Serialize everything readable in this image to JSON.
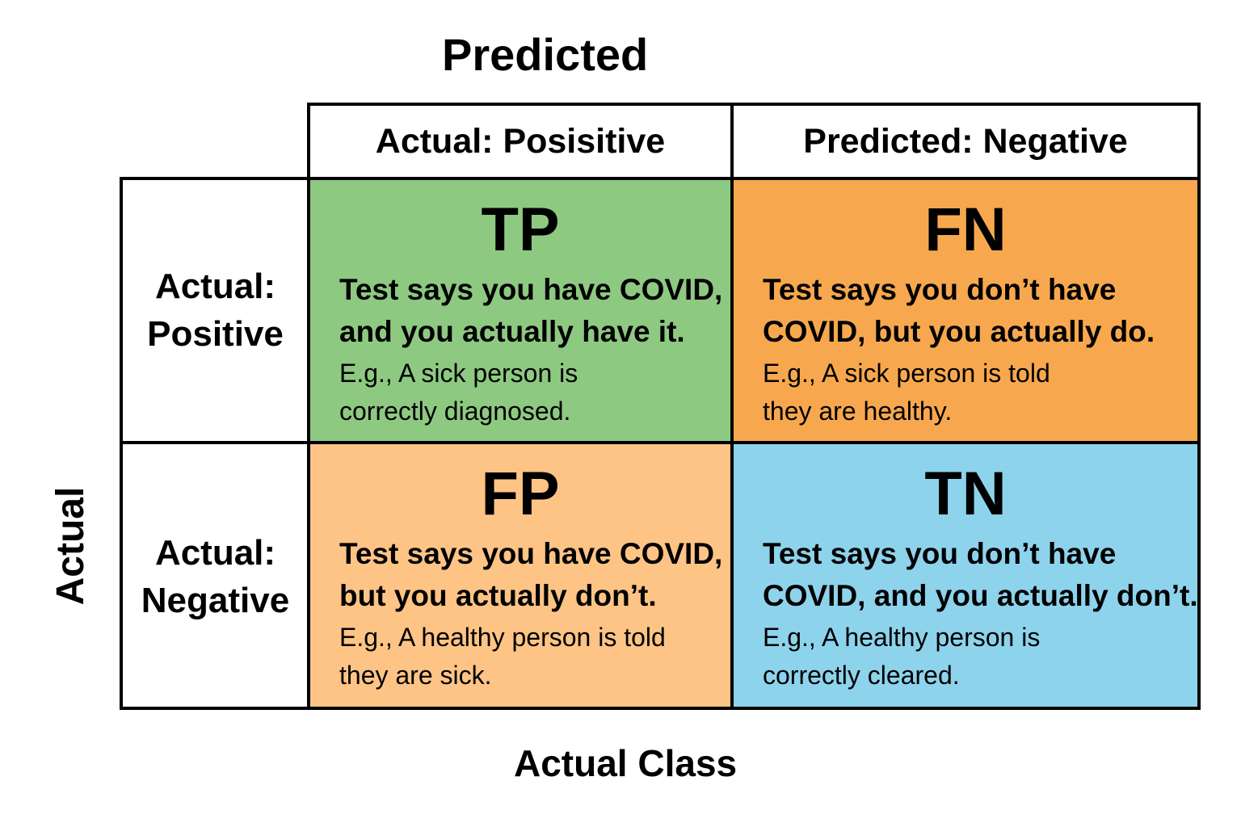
{
  "titles": {
    "top": "Predicted",
    "left": "Actual",
    "bottom": "Actual Class"
  },
  "columns": [
    "Actual: Posisitive",
    "Predicted: Negative"
  ],
  "rows": [
    {
      "line1": "Actual:",
      "line2": "Positive"
    },
    {
      "line1": "Actual:",
      "line2": "Negative"
    }
  ],
  "cells": {
    "tp": {
      "abbr": "TP",
      "color": "#8ec982",
      "line1": "Test says you have COVID,",
      "line2": "and you actually have it.",
      "ex1": "E.g., A sick person is",
      "ex2": "correctly diagnosed."
    },
    "fn": {
      "abbr": "FN",
      "color": "#f7a84e",
      "line1": "Test says you don’t have",
      "line2": "COVID, but you actually do.",
      "ex1": "E.g., A sick person is told",
      "ex2": "they are healthy."
    },
    "fp": {
      "abbr": "FP",
      "color": "#fdc486",
      "line1": "Test says you have COVID,",
      "line2": "but you actually don’t.",
      "ex1": "E.g., A healthy person is told",
      "ex2": "they are sick."
    },
    "tn": {
      "abbr": "TN",
      "color": "#8ed3ec",
      "line1": "Test says you don’t have",
      "line2": "COVID, and you actually don’t.",
      "ex1": "E.g., A healthy person is",
      "ex2": "correctly cleared."
    }
  }
}
